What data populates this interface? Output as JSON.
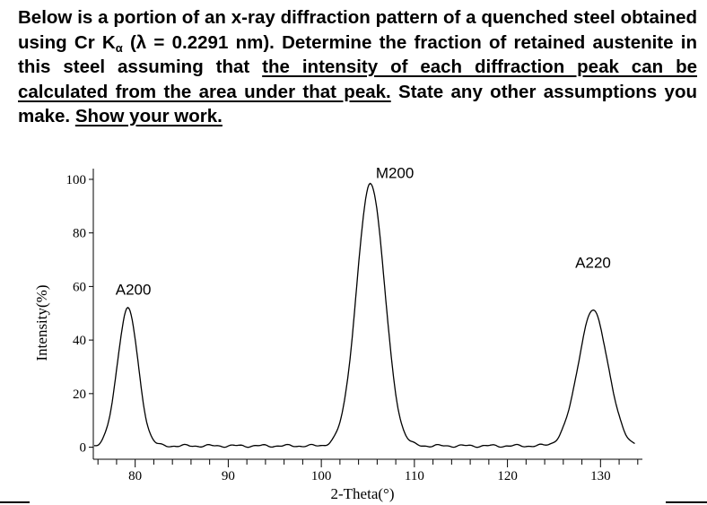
{
  "problem": {
    "part1": "Below is a portion of an x-ray diffraction pattern of a quenched steel obtained using Cr K",
    "part1_sub": "α",
    "part2": " (λ = 0.2291 nm). Determine the fraction of retained austenite in this steel assuming that ",
    "underlined1": "the intensity of each diffraction peak can be calculated from the area under that peak.",
    "part3": " State any other assumptions you make. ",
    "underlined2": "Show your work."
  },
  "chart_data": {
    "type": "line",
    "xlabel": "2-Theta(°)",
    "ylabel": "Intensity(%)",
    "xlim": [
      75.5,
      134.5
    ],
    "ylim": [
      -4.5,
      104
    ],
    "xticks": [
      80,
      90,
      100,
      110,
      120,
      130
    ],
    "yticks": [
      0,
      20,
      40,
      60,
      80,
      100
    ],
    "baseline": 0.5,
    "peaks": [
      {
        "label": "A200",
        "center": 79.2,
        "height": 52,
        "label_x": 79.8,
        "label_y": 57
      },
      {
        "label": "M200",
        "center": 105.3,
        "height": 98.5,
        "label_x": 107.9,
        "label_y": 100.5
      },
      {
        "label": "A220",
        "center": 129.2,
        "height": 51,
        "label_x": 129.2,
        "label_y": 67
      }
    ]
  }
}
